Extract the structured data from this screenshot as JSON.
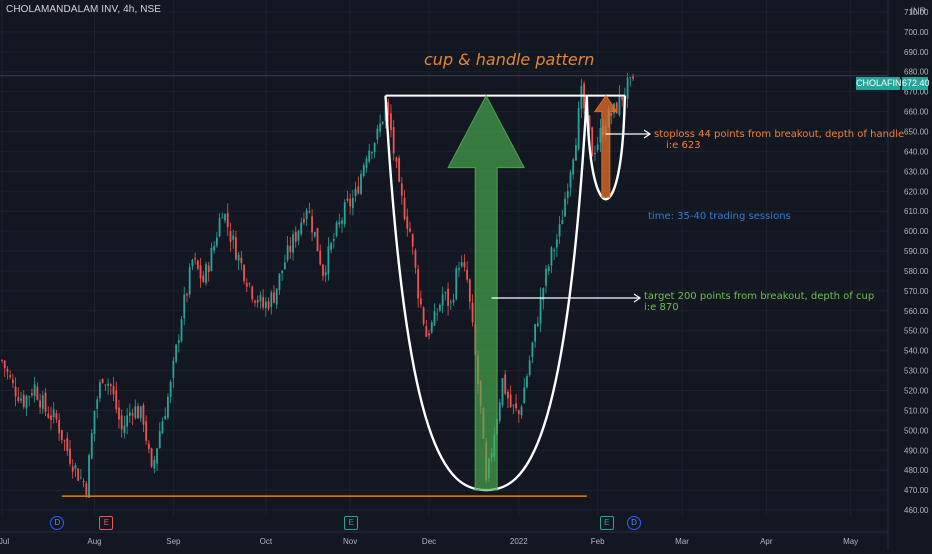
{
  "symbol": {
    "title": "CHOLAMANDALAM INV, 4h, NSE",
    "currency": "INR",
    "ticker_badge": "CHOLAFIN",
    "last_price": "672.40"
  },
  "colors": {
    "background": "#131722",
    "grid": "#1e222d",
    "up": "#26a69a",
    "down": "#ef5350",
    "axis_text": "#b2b5be",
    "pattern_line": "#ffffff",
    "title_annotation": "#e6862d",
    "stoploss_annotation": "#f0803c",
    "time_annotation": "#2f7fd6",
    "target_annotation": "#6cc24a",
    "support_line": "#f57c00"
  },
  "annotations": {
    "title": "cup & handle pattern",
    "stoploss_line1": "stoploss 44 points from breakout, depth of handle",
    "stoploss_line2": "i:e 623",
    "time": "time: 35-40 trading sessions",
    "target_line1": "target 200 points from breakout, depth of cup",
    "target_line2": "i:e 870"
  },
  "events": [
    {
      "label": "D",
      "kind": "dividend",
      "date_index": 20
    },
    {
      "label": "E",
      "kind": "earnings-red",
      "date_index": 38
    },
    {
      "label": "E",
      "kind": "earnings",
      "date_index": 128
    },
    {
      "label": "E",
      "kind": "earnings",
      "date_index": 222
    },
    {
      "label": "D",
      "kind": "dividend",
      "date_index": 232
    }
  ],
  "chart_data": {
    "type": "candlestick",
    "title": "CHOLAMANDALAM INV, 4h, NSE",
    "ylabel": "INR",
    "ylim": [
      457,
      712
    ],
    "yticks": [
      460,
      470,
      480,
      490,
      500,
      510,
      520,
      530,
      540,
      550,
      560,
      570,
      580,
      590,
      600,
      610,
      620,
      630,
      640,
      650,
      660,
      670,
      680,
      690,
      700,
      710
    ],
    "xticks": [
      "Jul",
      "Aug",
      "Sep",
      "Oct",
      "Nov",
      "Dec",
      "2022",
      "Feb",
      "Mar",
      "Apr",
      "May"
    ],
    "xtick_index": [
      0,
      34,
      63,
      97,
      128,
      157,
      190,
      219,
      250,
      281,
      312
    ],
    "bars_total": 340,
    "last_index": 232,
    "price_path": [
      [
        0,
        535
      ],
      [
        4,
        522
      ],
      [
        8,
        515
      ],
      [
        12,
        522
      ],
      [
        16,
        510
      ],
      [
        20,
        505
      ],
      [
        24,
        490
      ],
      [
        28,
        478
      ],
      [
        31,
        472
      ],
      [
        34,
        510
      ],
      [
        37,
        528
      ],
      [
        40,
        522
      ],
      [
        44,
        500
      ],
      [
        48,
        512
      ],
      [
        52,
        506
      ],
      [
        55,
        478
      ],
      [
        58,
        500
      ],
      [
        62,
        522
      ],
      [
        64,
        540
      ],
      [
        66,
        558
      ],
      [
        68,
        570
      ],
      [
        70,
        585
      ],
      [
        74,
        575
      ],
      [
        78,
        593
      ],
      [
        81,
        612
      ],
      [
        84,
        598
      ],
      [
        88,
        583
      ],
      [
        92,
        570
      ],
      [
        96,
        562
      ],
      [
        100,
        568
      ],
      [
        104,
        585
      ],
      [
        108,
        598
      ],
      [
        112,
        613
      ],
      [
        115,
        598
      ],
      [
        118,
        580
      ],
      [
        122,
        596
      ],
      [
        126,
        610
      ],
      [
        130,
        618
      ],
      [
        134,
        640
      ],
      [
        138,
        648
      ],
      [
        141,
        662
      ],
      [
        143,
        650
      ],
      [
        146,
        620
      ],
      [
        150,
        600
      ],
      [
        153,
        570
      ],
      [
        156,
        548
      ],
      [
        159,
        555
      ],
      [
        162,
        568
      ],
      [
        165,
        563
      ],
      [
        168,
        585
      ],
      [
        171,
        575
      ],
      [
        173,
        550
      ],
      [
        176,
        510
      ],
      [
        178,
        472
      ],
      [
        181,
        500
      ],
      [
        184,
        525
      ],
      [
        187,
        512
      ],
      [
        190,
        508
      ],
      [
        193,
        528
      ],
      [
        196,
        550
      ],
      [
        199,
        572
      ],
      [
        202,
        588
      ],
      [
        205,
        600
      ],
      [
        208,
        625
      ],
      [
        211,
        648
      ],
      [
        213,
        668
      ],
      [
        215,
        655
      ],
      [
        217,
        640
      ],
      [
        219,
        645
      ],
      [
        222,
        656
      ],
      [
        225,
        660
      ],
      [
        228,
        668
      ],
      [
        230,
        672.4
      ],
      [
        232,
        672.4
      ]
    ],
    "cup_rim": 668,
    "cup_bottom": 470,
    "handle_low": 616,
    "resistance_level": 678,
    "support_level": 467,
    "stoploss": 623,
    "target": 870
  }
}
